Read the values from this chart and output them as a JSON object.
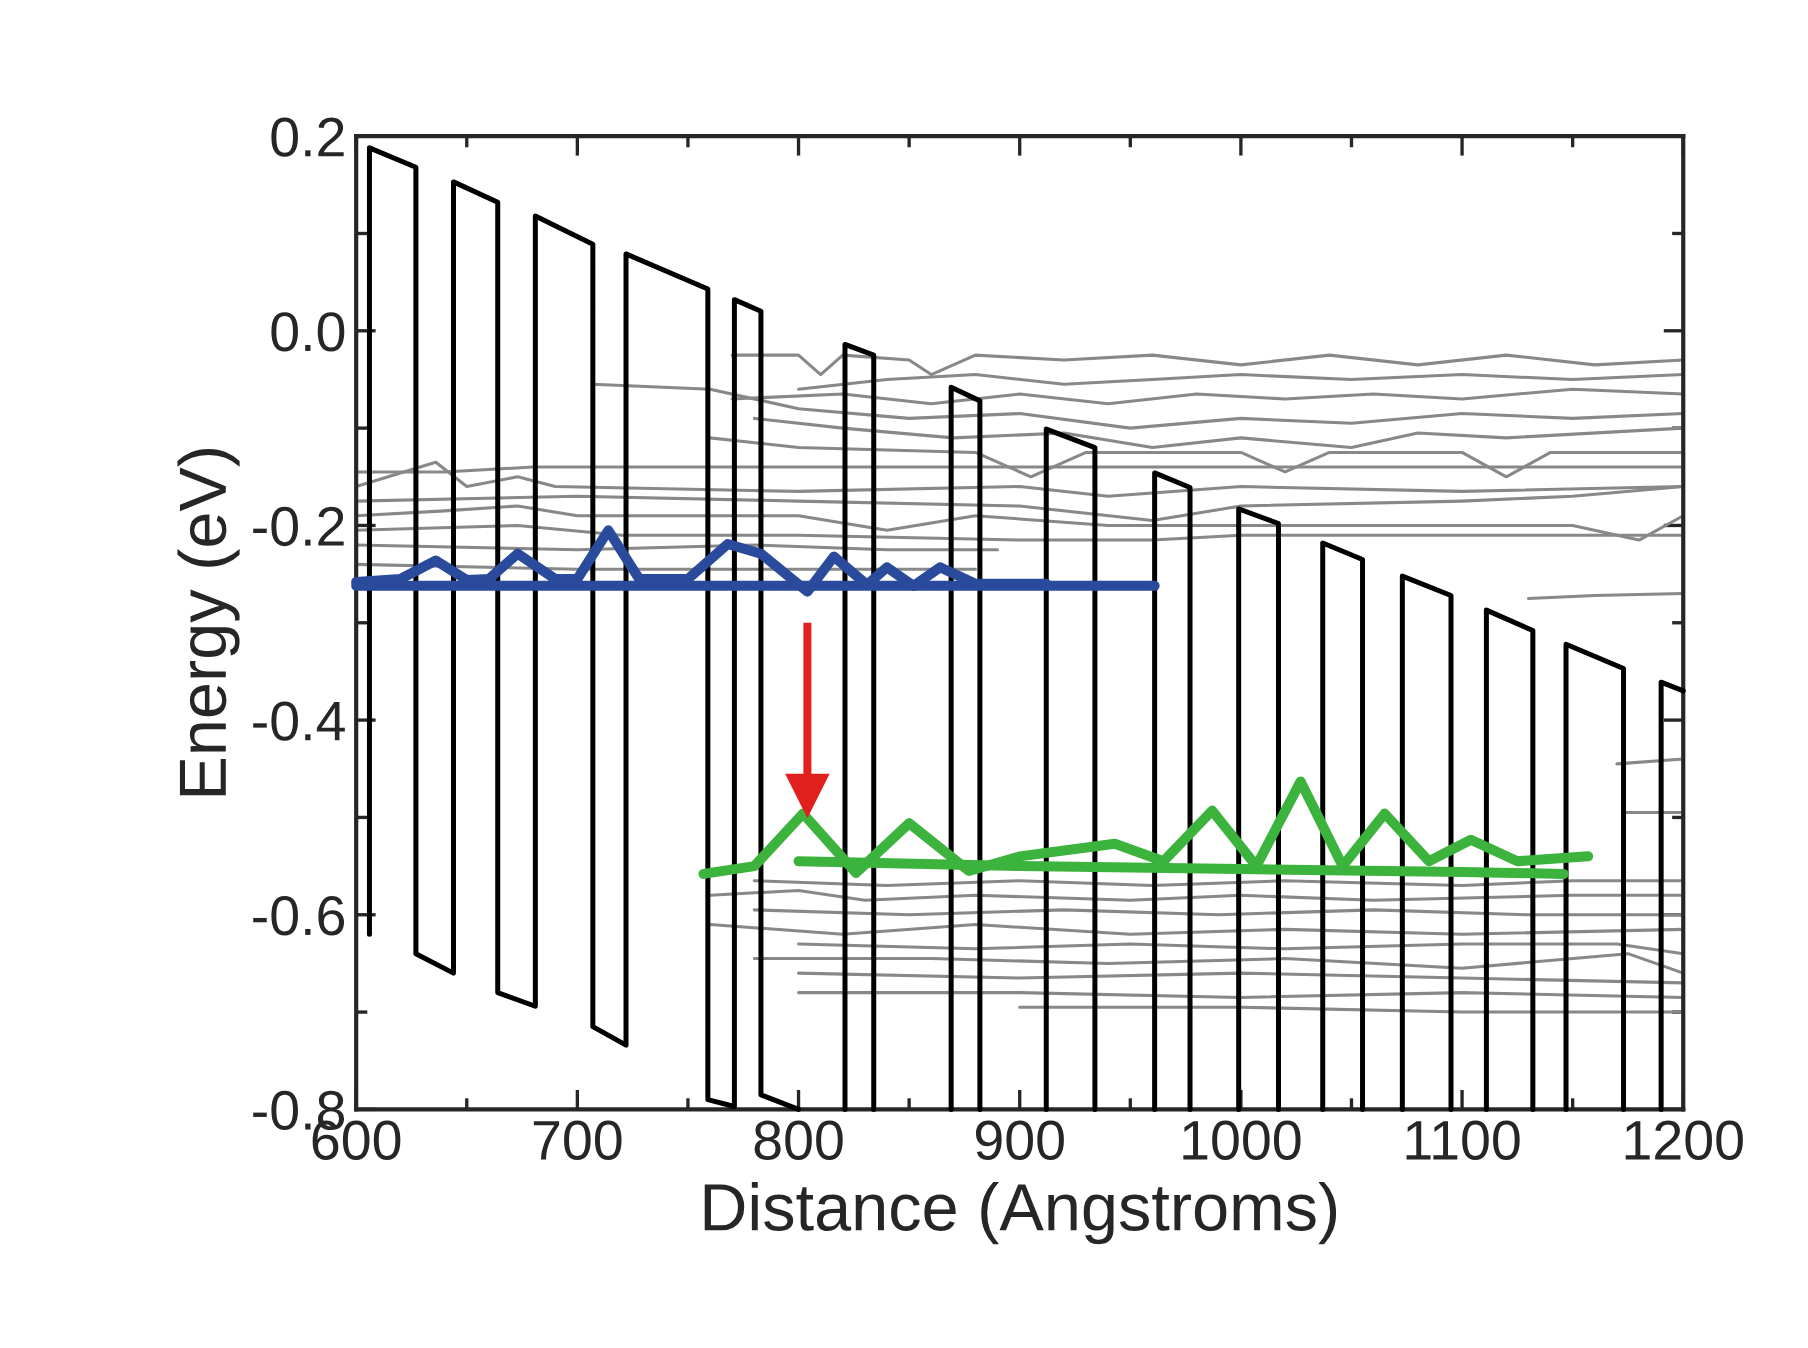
{
  "chart_data": {
    "type": "line",
    "xlabel": "Distance (Angstroms)",
    "ylabel": "Energy (eV)",
    "xlim": [
      600,
      1200
    ],
    "xticks": [
      600,
      700,
      800,
      900,
      1000,
      1100,
      1200
    ],
    "ylim": [
      -0.8,
      0.2
    ],
    "yticks": [
      {
        "value": -0.8,
        "label": "-0.8"
      },
      {
        "value": -0.6,
        "label": "-0.6"
      },
      {
        "value": -0.4,
        "label": "-0.4"
      },
      {
        "value": -0.2,
        "label": "-0.2"
      },
      {
        "value": 0.0,
        "label": "0.0"
      },
      {
        "value": 0.2,
        "label": "0.2"
      }
    ],
    "grid": false,
    "legend": false,
    "marker": "none",
    "line_style": "solid",
    "series": [
      {
        "color": "#888888",
        "x": [
          770,
          800,
          810,
          820,
          850,
          860,
          880,
          920,
          960,
          1000,
          1040,
          1080,
          1120,
          1160,
          1200
        ],
        "values": [
          -0.025,
          -0.025,
          -0.045,
          -0.025,
          -0.03,
          -0.045,
          -0.025,
          -0.03,
          -0.025,
          -0.035,
          -0.025,
          -0.035,
          -0.025,
          -0.035,
          -0.03
        ]
      },
      {
        "color": "#888888",
        "x": [
          800,
          840,
          880,
          920,
          960,
          1000,
          1050,
          1100,
          1150,
          1200
        ],
        "values": [
          -0.06,
          -0.05,
          -0.045,
          -0.055,
          -0.05,
          -0.045,
          -0.05,
          -0.045,
          -0.05,
          -0.045
        ]
      },
      {
        "color": "#888888",
        "x": [
          770,
          820,
          860,
          900,
          940,
          980,
          1020,
          1060,
          1100,
          1150,
          1200
        ],
        "values": [
          -0.07,
          -0.065,
          -0.075,
          -0.065,
          -0.075,
          -0.065,
          -0.07,
          -0.065,
          -0.07,
          -0.06,
          -0.065
        ]
      },
      {
        "color": "#888888",
        "x": [
          707,
          760,
          800,
          850,
          900,
          950,
          1000,
          1050,
          1100,
          1150,
          1200
        ],
        "values": [
          -0.055,
          -0.06,
          -0.08,
          -0.09,
          -0.085,
          -0.1,
          -0.09,
          -0.095,
          -0.085,
          -0.09,
          -0.085
        ]
      },
      {
        "color": "#888888",
        "x": [
          780,
          820,
          870,
          920,
          960,
          1000,
          1050,
          1080,
          1120,
          1200
        ],
        "values": [
          -0.09,
          -0.1,
          -0.11,
          -0.105,
          -0.12,
          -0.11,
          -0.12,
          -0.105,
          -0.11,
          -0.1
        ]
      },
      {
        "color": "#888888",
        "x": [
          760,
          800,
          880,
          905,
          930,
          1000,
          1020,
          1040,
          1100,
          1120,
          1140,
          1200
        ],
        "values": [
          -0.11,
          -0.12,
          -0.125,
          -0.15,
          -0.125,
          -0.125,
          -0.145,
          -0.125,
          -0.125,
          -0.15,
          -0.125,
          -0.125
        ]
      },
      {
        "color": "#888888",
        "x": [
          600,
          640,
          680,
          760,
          840,
          950,
          1200
        ],
        "values": [
          -0.145,
          -0.145,
          -0.14,
          -0.14,
          -0.14,
          -0.14,
          -0.14
        ]
      },
      {
        "color": "#888888",
        "x": [
          600,
          636,
          650,
          673,
          690,
          800,
          900,
          940,
          1000,
          1100,
          1200
        ],
        "values": [
          -0.16,
          -0.135,
          -0.16,
          -0.15,
          -0.16,
          -0.165,
          -0.16,
          -0.17,
          -0.16,
          -0.165,
          -0.16
        ]
      },
      {
        "color": "#888888",
        "x": [
          600,
          700,
          800,
          900,
          960,
          1000,
          1100,
          1150,
          1200
        ],
        "values": [
          -0.175,
          -0.17,
          -0.175,
          -0.18,
          -0.195,
          -0.18,
          -0.175,
          -0.17,
          -0.16
        ]
      },
      {
        "color": "#888888",
        "x": [
          600,
          640,
          673,
          700,
          800,
          840,
          880,
          940,
          1050,
          1150,
          1180,
          1200
        ],
        "values": [
          -0.19,
          -0.185,
          -0.18,
          -0.19,
          -0.19,
          -0.205,
          -0.19,
          -0.2,
          -0.2,
          -0.2,
          -0.215,
          -0.19
        ]
      },
      {
        "color": "#888888",
        "x": [
          600,
          673,
          720,
          800,
          900,
          960,
          1000,
          1100,
          1200
        ],
        "values": [
          -0.205,
          -0.2,
          -0.21,
          -0.21,
          -0.215,
          -0.215,
          -0.21,
          -0.21,
          -0.21
        ]
      },
      {
        "color": "#888888",
        "x": [
          600,
          700,
          780,
          840,
          890
        ],
        "values": [
          -0.22,
          -0.225,
          -0.22,
          -0.225,
          -0.225
        ]
      },
      {
        "color": "#888888",
        "x": [
          600,
          700,
          800,
          880
        ],
        "values": [
          -0.24,
          -0.245,
          -0.245,
          -0.245
        ]
      },
      {
        "color": "#888888",
        "x": [
          1130,
          1160,
          1200
        ],
        "values": [
          -0.275,
          -0.272,
          -0.27
        ]
      },
      {
        "color": "#888888",
        "x": [
          1170,
          1200
        ],
        "values": [
          -0.445,
          -0.44
        ]
      },
      {
        "color": "#888888",
        "x": [
          1173,
          1200
        ],
        "values": [
          -0.495,
          -0.495
        ]
      },
      {
        "color": "#888888",
        "x": [
          780,
          840,
          900,
          960,
          1020,
          1100,
          1150,
          1200
        ],
        "values": [
          -0.565,
          -0.57,
          -0.565,
          -0.57,
          -0.565,
          -0.57,
          -0.565,
          -0.565
        ]
      },
      {
        "color": "#888888",
        "x": [
          760,
          800,
          830,
          880,
          950,
          1000,
          1060,
          1150,
          1200
        ],
        "values": [
          -0.58,
          -0.575,
          -0.585,
          -0.58,
          -0.585,
          -0.58,
          -0.585,
          -0.58,
          -0.58
        ]
      },
      {
        "color": "#888888",
        "x": [
          780,
          850,
          920,
          990,
          1060,
          1130,
          1200
        ],
        "values": [
          -0.595,
          -0.6,
          -0.595,
          -0.6,
          -0.595,
          -0.6,
          -0.6
        ]
      },
      {
        "color": "#888888",
        "x": [
          760,
          820,
          880,
          950,
          1020,
          1100,
          1200
        ],
        "values": [
          -0.61,
          -0.62,
          -0.61,
          -0.62,
          -0.615,
          -0.62,
          -0.615
        ]
      },
      {
        "color": "#888888",
        "x": [
          800,
          880,
          950,
          1020,
          1100,
          1170,
          1200
        ],
        "values": [
          -0.63,
          -0.635,
          -0.63,
          -0.635,
          -0.63,
          -0.63,
          -0.64
        ]
      },
      {
        "color": "#888888",
        "x": [
          780,
          860,
          940,
          1020,
          1100,
          1175,
          1200
        ],
        "values": [
          -0.645,
          -0.645,
          -0.65,
          -0.645,
          -0.655,
          -0.64,
          -0.66
        ]
      },
      {
        "color": "#888888",
        "x": [
          800,
          900,
          1000,
          1100,
          1200
        ],
        "values": [
          -0.66,
          -0.665,
          -0.66,
          -0.665,
          -0.67
        ]
      },
      {
        "color": "#888888",
        "x": [
          800,
          900,
          1000,
          1100,
          1200
        ],
        "values": [
          -0.68,
          -0.68,
          -0.685,
          -0.68,
          -0.685
        ]
      },
      {
        "color": "#888888",
        "x": [
          900,
          1000,
          1100,
          1200
        ],
        "values": [
          -0.695,
          -0.695,
          -0.7,
          -0.7
        ]
      },
      {
        "color": "#000000",
        "x": [
          606,
          606,
          627,
          627,
          644,
          644,
          664,
          664,
          681,
          681,
          707,
          707,
          722,
          722,
          759,
          759,
          771,
          771,
          783,
          783,
          800
        ],
        "values": [
          -0.62,
          0.188,
          0.168,
          -0.64,
          -0.66,
          0.153,
          0.132,
          -0.68,
          -0.694,
          0.118,
          0.089,
          -0.715,
          -0.734,
          0.079,
          0.043,
          -0.79,
          -0.797,
          0.032,
          0.02,
          -0.785,
          -0.8
        ]
      },
      {
        "color": "#000000",
        "x": [
          821,
          821,
          834,
          834
        ],
        "values": [
          -0.8,
          -0.014,
          -0.025,
          -0.8
        ]
      },
      {
        "color": "#000000",
        "x": [
          869,
          869,
          882,
          882
        ],
        "values": [
          -0.8,
          -0.058,
          -0.072,
          -0.8
        ]
      },
      {
        "color": "#000000",
        "x": [
          912,
          912,
          934,
          934
        ],
        "values": [
          -0.8,
          -0.101,
          -0.12,
          -0.8
        ]
      },
      {
        "color": "#000000",
        "x": [
          961,
          961,
          977,
          977
        ],
        "values": [
          -0.8,
          -0.146,
          -0.161,
          -0.8
        ]
      },
      {
        "color": "#000000",
        "x": [
          999,
          999,
          1017,
          1017
        ],
        "values": [
          -0.8,
          -0.183,
          -0.198,
          -0.8
        ]
      },
      {
        "color": "#000000",
        "x": [
          1037,
          1037,
          1055,
          1055
        ],
        "values": [
          -0.8,
          -0.218,
          -0.235,
          -0.8
        ]
      },
      {
        "color": "#000000",
        "x": [
          1073,
          1073,
          1095,
          1095
        ],
        "values": [
          -0.8,
          -0.252,
          -0.272,
          -0.8
        ]
      },
      {
        "color": "#000000",
        "x": [
          1111,
          1111,
          1132,
          1132
        ],
        "values": [
          -0.8,
          -0.287,
          -0.308,
          -0.8
        ]
      },
      {
        "color": "#000000",
        "x": [
          1147,
          1147,
          1173,
          1173
        ],
        "values": [
          -0.8,
          -0.322,
          -0.347,
          -0.8
        ]
      },
      {
        "color": "#000000",
        "x": [
          1190,
          1190,
          1200
        ],
        "values": [
          -0.8,
          -0.361,
          -0.37
        ]
      },
      {
        "color": "#2a4a9c",
        "x": [
          600,
          620,
          636,
          650,
          660,
          673,
          690,
          700,
          714,
          728,
          750,
          768,
          783,
          804,
          816,
          831,
          840,
          852,
          864,
          880,
          912
        ],
        "values": [
          -0.258,
          -0.255,
          -0.236,
          -0.256,
          -0.255,
          -0.229,
          -0.255,
          -0.255,
          -0.205,
          -0.255,
          -0.255,
          -0.219,
          -0.229,
          -0.268,
          -0.232,
          -0.261,
          -0.243,
          -0.262,
          -0.243,
          -0.26,
          -0.26
        ]
      },
      {
        "color": "#2a4a9c",
        "x": [
          600,
          700,
          800,
          880,
          961
        ],
        "values": [
          -0.262,
          -0.262,
          -0.262,
          -0.262,
          -0.262
        ]
      },
      {
        "color": "#3cb33c",
        "x": [
          757,
          780,
          802,
          826,
          850,
          877,
          900,
          943,
          965,
          987,
          1007,
          1027,
          1046,
          1065,
          1085,
          1104,
          1125,
          1157
        ],
        "values": [
          -0.558,
          -0.55,
          -0.496,
          -0.557,
          -0.506,
          -0.555,
          -0.54,
          -0.527,
          -0.545,
          -0.493,
          -0.55,
          -0.463,
          -0.55,
          -0.496,
          -0.545,
          -0.523,
          -0.545,
          -0.54
        ]
      },
      {
        "color": "#3cb33c",
        "x": [
          800,
          900,
          1000,
          1100,
          1146
        ],
        "values": [
          -0.545,
          -0.55,
          -0.553,
          -0.556,
          -0.558
        ]
      },
      {
        "color": "#e0201c",
        "marker": "triangle",
        "x": [
          804,
          804
        ],
        "values": [
          -0.3,
          -0.478
        ]
      }
    ]
  }
}
